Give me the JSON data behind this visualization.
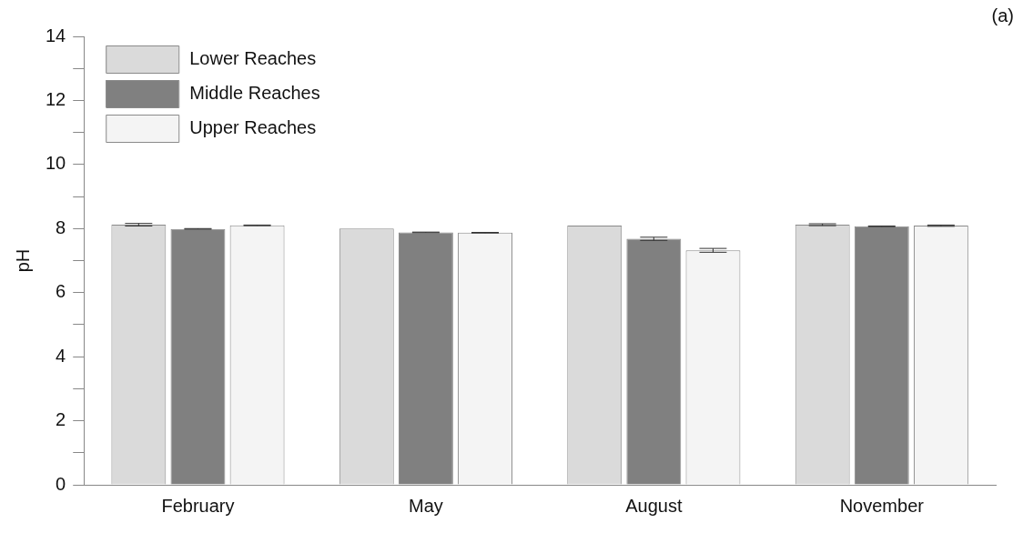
{
  "chart_data": {
    "type": "bar",
    "ylabel": "pH",
    "annotations": [
      "(a)"
    ],
    "categories": [
      "February",
      "May",
      "August",
      "November"
    ],
    "series": [
      {
        "name": "Lower Reaches",
        "color": "#dadada",
        "values": [
          8.12,
          8.0,
          8.09,
          8.12
        ],
        "errors": [
          0.04,
          null,
          null,
          0.03
        ]
      },
      {
        "name": "Middle Reaches",
        "color": "#808080",
        "values": [
          7.99,
          7.88,
          7.68,
          8.07
        ],
        "errors": [
          0.01,
          0.01,
          0.05,
          0.01
        ]
      },
      {
        "name": "Upper Reaches",
        "color": "#f4f4f4",
        "values": [
          8.1,
          7.87,
          7.32,
          8.09
        ],
        "errors": [
          0.01,
          0.01,
          0.06,
          0.02
        ]
      }
    ],
    "ylim": [
      0,
      14
    ],
    "yticks": [
      0,
      {
        "value": 1,
        "label": null
      },
      2,
      {
        "value": 3,
        "label": null
      },
      4,
      {
        "value": 5,
        "label": null
      },
      6,
      {
        "value": 7,
        "label": null
      },
      8,
      {
        "value": 9,
        "label": null
      },
      10,
      {
        "value": 11,
        "label": null
      },
      12,
      {
        "value": 13,
        "label": null
      },
      14
    ],
    "grid": false,
    "legend": "top left"
  }
}
